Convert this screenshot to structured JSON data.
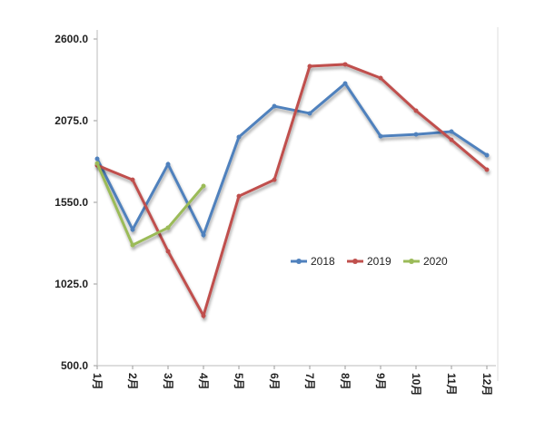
{
  "chart_data": {
    "type": "line",
    "categories": [
      "1月",
      "2月",
      "3月",
      "4月",
      "5月",
      "6月",
      "7月",
      "8月",
      "9月",
      "10月",
      "11月",
      "12月"
    ],
    "series": [
      {
        "name": "2018",
        "color": "#4f81bd",
        "values": [
          1830,
          1375,
          1795,
          1340,
          1970,
          2168,
          2122,
          2314,
          1975,
          1987,
          2005,
          1853
        ]
      },
      {
        "name": "2019",
        "color": "#c0504d",
        "values": [
          1788,
          1695,
          1235,
          821,
          1590,
          1695,
          2425,
          2437,
          2349,
          2139,
          1952,
          1760
        ]
      },
      {
        "name": "2020",
        "color": "#9bbb59",
        "values": [
          1800,
          1275,
          1387,
          1655,
          null,
          null,
          null,
          null,
          null,
          null,
          null,
          null
        ]
      }
    ],
    "ylim": [
      500,
      2600
    ],
    "yticks": [
      {
        "value": 500,
        "label": "500.0"
      },
      {
        "value": 1025,
        "label": "1025.0"
      },
      {
        "value": 1550,
        "label": "1550.0"
      },
      {
        "value": 2075,
        "label": "2075.0"
      },
      {
        "value": 2600,
        "label": "2600.0"
      }
    ],
    "legend": "center-right"
  }
}
